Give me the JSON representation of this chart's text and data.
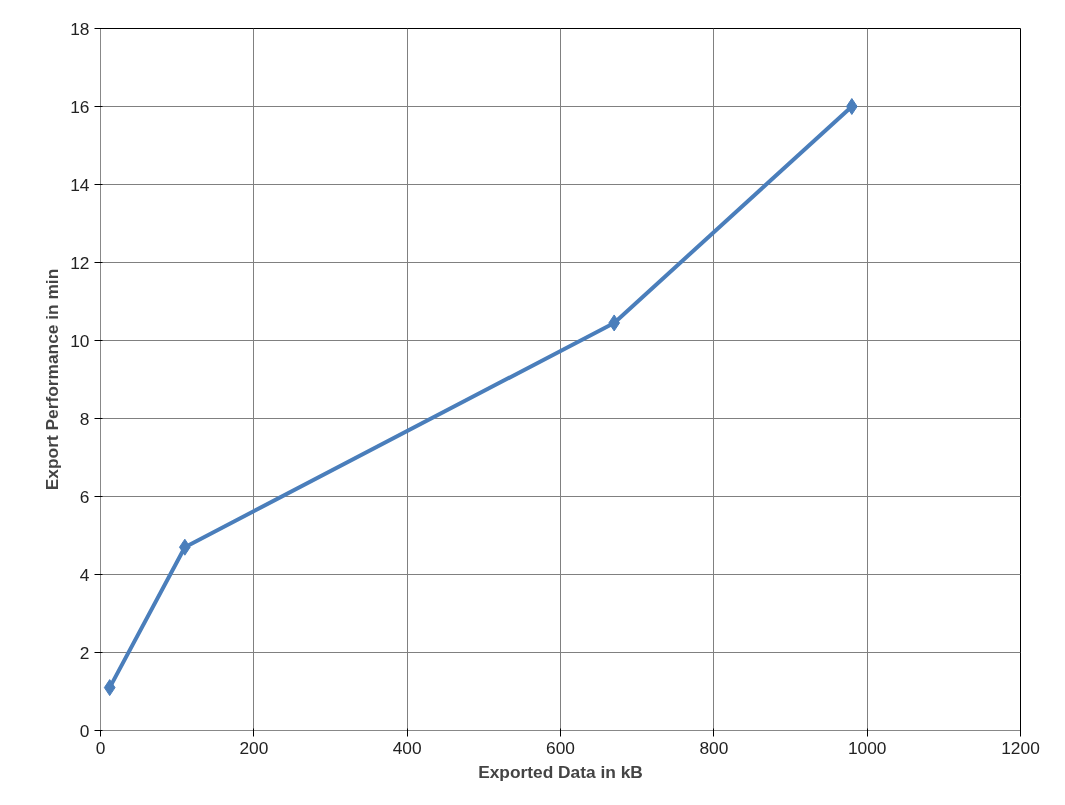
{
  "chart_data": {
    "type": "line",
    "xlabel": "Exported Data in kB",
    "ylabel": "Export Performance in min",
    "x": [
      12,
      110,
      670,
      980
    ],
    "series": [
      {
        "color": "#4a7ebb",
        "values": [
          1.1,
          4.7,
          10.45,
          16.0
        ]
      }
    ],
    "xlim": [
      0,
      1200
    ],
    "xticks": [
      0,
      200,
      400,
      600,
      800,
      1000,
      1200
    ],
    "ylim": [
      0,
      18
    ],
    "yticks": [
      0,
      2,
      4,
      6,
      8,
      10,
      12,
      14,
      16,
      18
    ],
    "grid": true,
    "marker": "diamond",
    "line_style": "solid"
  }
}
